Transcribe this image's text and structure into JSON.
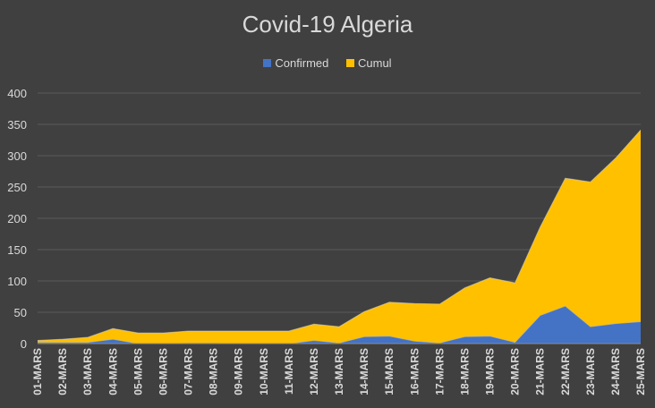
{
  "chart_data": {
    "type": "area",
    "stacked": true,
    "title": "Covid-19 Algeria",
    "xlabel": "",
    "ylabel": "",
    "ylim": [
      0,
      400
    ],
    "yticks": [
      0,
      50,
      100,
      150,
      200,
      250,
      300,
      350,
      400
    ],
    "grid": true,
    "legend_position": "top",
    "categories": [
      "01-MARS",
      "02-MARS",
      "03-MARS",
      "04-MARS",
      "05-MARS",
      "06-MARS",
      "07-MARS",
      "08-MARS",
      "09-MARS",
      "10-MARS",
      "11-MARS",
      "12-MARS",
      "13-MARS",
      "14-MARS",
      "15-MARS",
      "16-MARS",
      "17-MARS",
      "18-MARS",
      "19-MARS",
      "20-MARS",
      "21-MARS",
      "22-MARS",
      "23-MARS",
      "24-MARS",
      "25-MARS"
    ],
    "series": [
      {
        "name": "Confirmed",
        "color": "#4472c4",
        "values": [
          2,
          2,
          2,
          7,
          0,
          0,
          1,
          1,
          0,
          0,
          0,
          5,
          1,
          11,
          12,
          4,
          1,
          11,
          12,
          2,
          45,
          60,
          27,
          32,
          35
        ]
      },
      {
        "name": "Cumul",
        "color": "#ffc000",
        "values": [
          3,
          5,
          8,
          17,
          17,
          17,
          19,
          19,
          20,
          20,
          20,
          26,
          26,
          40,
          54,
          60,
          62,
          78,
          93,
          95,
          141,
          204,
          231,
          264,
          306
        ]
      }
    ]
  }
}
